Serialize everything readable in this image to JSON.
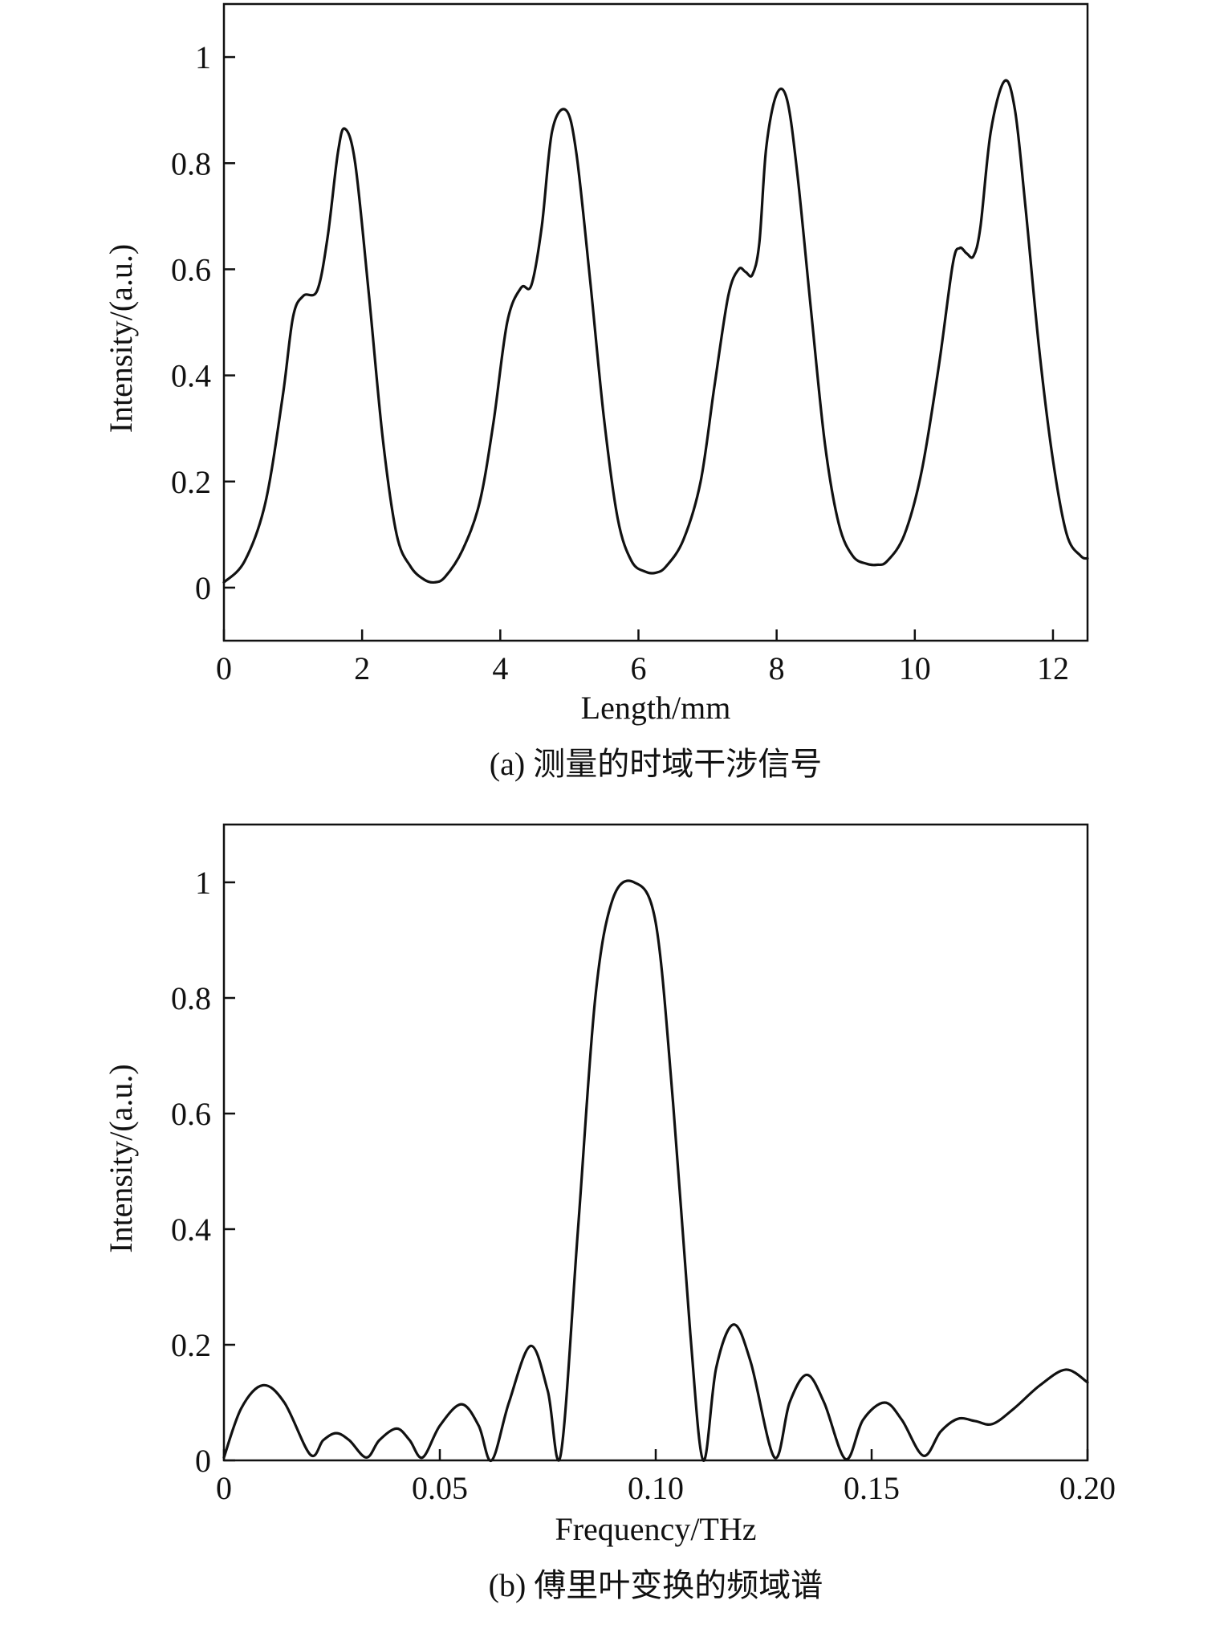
{
  "chart_data": [
    {
      "id": "a",
      "type": "line",
      "caption": "(a) 测量的时域干涉信号",
      "xlabel": "Length/mm",
      "ylabel": "Intensity/(a.u.)",
      "xlim": [
        0,
        12.5
      ],
      "ylim": [
        -0.1,
        1.1
      ],
      "xticks": [
        0,
        2,
        4,
        6,
        8,
        10,
        12
      ],
      "xtick_labels": [
        "0",
        "2",
        "4",
        "6",
        "8",
        "10",
        "12"
      ],
      "yticks": [
        0,
        0.2,
        0.4,
        0.6,
        0.8,
        1
      ],
      "ytick_labels": [
        "0",
        "0.2",
        "0.4",
        "0.6",
        "0.8",
        "1"
      ],
      "grid": false,
      "series": [
        {
          "x": [
            0,
            0.3,
            0.6,
            0.85,
            1.0,
            1.15,
            1.35,
            1.5,
            1.65,
            1.75,
            1.9,
            2.1,
            2.3,
            2.5,
            2.7,
            2.9,
            3.05,
            3.2,
            3.45,
            3.7,
            3.9,
            4.1,
            4.3,
            4.45,
            4.6,
            4.75,
            4.95,
            5.1,
            5.3,
            5.5,
            5.7,
            5.9,
            6.1,
            6.25,
            6.4,
            6.65,
            6.9,
            7.1,
            7.3,
            7.45,
            7.55,
            7.65,
            7.75,
            7.85,
            8.0,
            8.15,
            8.3,
            8.5,
            8.7,
            8.9,
            9.1,
            9.3,
            9.45,
            9.6,
            9.85,
            10.1,
            10.35,
            10.55,
            10.65,
            10.75,
            10.85,
            10.95,
            11.1,
            11.3,
            11.45,
            11.6,
            11.8,
            12.0,
            12.2,
            12.4,
            12.5
          ],
          "y": [
            0.01,
            0.05,
            0.16,
            0.36,
            0.51,
            0.55,
            0.56,
            0.66,
            0.82,
            0.865,
            0.8,
            0.55,
            0.28,
            0.1,
            0.04,
            0.015,
            0.01,
            0.02,
            0.07,
            0.16,
            0.31,
            0.5,
            0.565,
            0.57,
            0.68,
            0.86,
            0.9,
            0.82,
            0.58,
            0.32,
            0.13,
            0.05,
            0.03,
            0.028,
            0.04,
            0.09,
            0.2,
            0.38,
            0.55,
            0.6,
            0.595,
            0.59,
            0.65,
            0.83,
            0.93,
            0.92,
            0.78,
            0.52,
            0.27,
            0.12,
            0.06,
            0.045,
            0.043,
            0.05,
            0.1,
            0.22,
            0.42,
            0.61,
            0.64,
            0.63,
            0.625,
            0.68,
            0.86,
            0.955,
            0.9,
            0.72,
            0.45,
            0.24,
            0.1,
            0.06,
            0.055
          ]
        }
      ]
    },
    {
      "id": "b",
      "type": "line",
      "caption": "(b) 傅里叶变换的频域谱",
      "xlabel": "Frequency/THz",
      "ylabel": "Intensity/(a.u.)",
      "xlim": [
        0,
        0.2
      ],
      "ylim": [
        0,
        1.1
      ],
      "xticks": [
        0,
        0.05,
        0.1,
        0.15,
        0.2
      ],
      "xtick_labels": [
        "0",
        "0.05",
        "0.10",
        "0.15",
        "0.20"
      ],
      "yticks": [
        0,
        0.2,
        0.4,
        0.6,
        0.8,
        1
      ],
      "ytick_labels": [
        "0",
        "0.2",
        "0.4",
        "0.6",
        "0.8",
        "1"
      ],
      "grid": false,
      "series": [
        {
          "x": [
            0,
            0.004,
            0.009,
            0.014,
            0.02,
            0.023,
            0.026,
            0.029,
            0.033,
            0.036,
            0.04,
            0.043,
            0.046,
            0.05,
            0.055,
            0.059,
            0.062,
            0.066,
            0.071,
            0.075,
            0.078,
            0.082,
            0.086,
            0.09,
            0.095,
            0.1,
            0.104,
            0.108,
            0.111,
            0.114,
            0.118,
            0.122,
            0.1275,
            0.131,
            0.135,
            0.139,
            0.144,
            0.148,
            0.153,
            0.157,
            0.162,
            0.166,
            0.17,
            0.174,
            0.178,
            0.183,
            0.189,
            0.195,
            0.2
          ],
          "y": [
            0.005,
            0.09,
            0.13,
            0.1,
            0.01,
            0.035,
            0.047,
            0.035,
            0.005,
            0.035,
            0.055,
            0.035,
            0.005,
            0.06,
            0.097,
            0.06,
            0.0,
            0.1,
            0.198,
            0.12,
            0.01,
            0.4,
            0.8,
            0.97,
            1.0,
            0.93,
            0.62,
            0.22,
            0.0,
            0.16,
            0.235,
            0.17,
            0.005,
            0.1,
            0.148,
            0.1,
            0.002,
            0.07,
            0.1,
            0.07,
            0.008,
            0.05,
            0.072,
            0.068,
            0.063,
            0.09,
            0.13,
            0.157,
            0.135
          ]
        }
      ]
    }
  ]
}
